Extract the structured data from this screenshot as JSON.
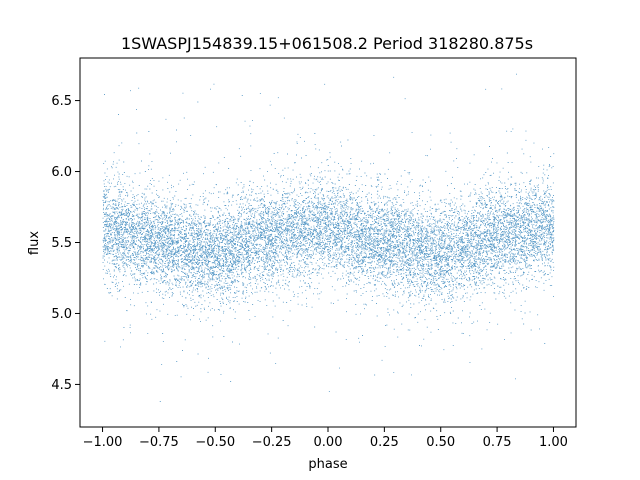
{
  "chart_data": {
    "type": "scatter",
    "title": "1SWASPJ154839.15+061508.2 Period 318280.875s",
    "xlabel": "phase",
    "ylabel": "flux",
    "xlim": [
      -1.1,
      1.1
    ],
    "ylim": [
      4.2,
      6.8
    ],
    "x_ticks": [
      -1.0,
      -0.75,
      -0.5,
      -0.25,
      0.0,
      0.25,
      0.5,
      0.75,
      1.0
    ],
    "x_tick_labels": [
      "−1.00",
      "−0.75",
      "−0.50",
      "−0.25",
      "0.00",
      "0.25",
      "0.50",
      "0.75",
      "1.00"
    ],
    "y_ticks": [
      4.5,
      5.0,
      5.5,
      6.0,
      6.5
    ],
    "y_tick_labels": [
      "4.5",
      "5.0",
      "5.5",
      "6.0",
      "6.5"
    ],
    "grid": false,
    "marker_color": "#1f77b4",
    "series": [
      {
        "phase_range": [
          -1.0,
          1.0
        ],
        "mean_flux_at_phase": {
          "x": [
            -1.0,
            -0.75,
            -0.5,
            -0.25,
            0.0,
            0.25,
            0.5,
            0.75,
            1.0
          ],
          "y": [
            5.6,
            5.5,
            5.42,
            5.55,
            5.6,
            5.5,
            5.42,
            5.55,
            5.6
          ]
        },
        "flux_core_range": [
          5.2,
          5.85
        ],
        "flux_outlier_range": [
          4.35,
          6.7
        ]
      }
    ]
  }
}
